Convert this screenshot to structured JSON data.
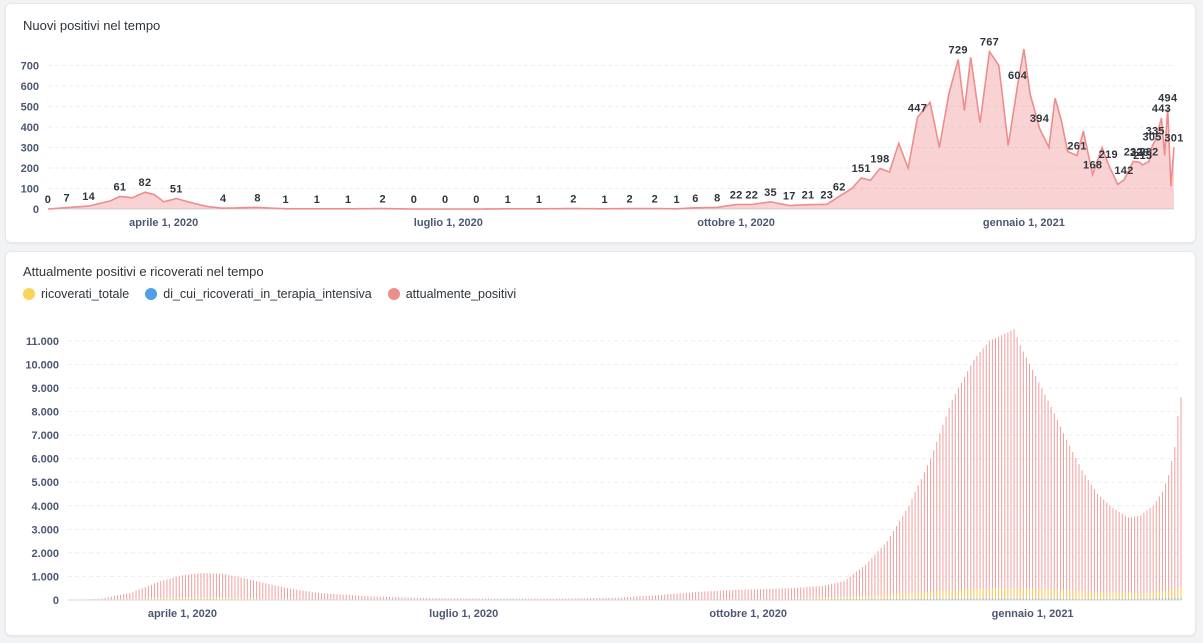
{
  "charts": {
    "top": {
      "title": "Nuovi positivi nel tempo"
    },
    "bottom": {
      "title": "Attualmente positivi e ricoverati nel tempo",
      "legend": [
        {
          "label": "ricoverati_totale",
          "color": "#f9d45c"
        },
        {
          "label": "di_cui_ricoverati_in_terapia_intensiva",
          "color": "#509ee3"
        },
        {
          "label": "attualmente_positivi",
          "color": "#ef8c8c"
        }
      ]
    }
  },
  "chart_data": [
    {
      "type": "area",
      "title": "Nuovi positivi nel tempo",
      "xlabel": "",
      "ylabel": "",
      "color": "#ef8c8c",
      "x_start": "2020-02-24",
      "x_end": "2021-02-18",
      "x_tick_labels": [
        "aprile 1, 2020",
        "luglio 1, 2020",
        "ottobre 1, 2020",
        "gennaio 1, 2021"
      ],
      "x_tick_dates": [
        "2020-04-01",
        "2020-07-01",
        "2020-10-01",
        "2021-01-01"
      ],
      "ylim": [
        0,
        780
      ],
      "y_ticks": [
        0,
        100,
        200,
        300,
        400,
        500,
        600,
        700
      ],
      "grid": true,
      "points": [
        [
          "2020-02-24",
          0
        ],
        [
          "2020-03-01",
          7
        ],
        [
          "2020-03-08",
          14
        ],
        [
          "2020-03-15",
          40
        ],
        [
          "2020-03-18",
          61
        ],
        [
          "2020-03-22",
          55
        ],
        [
          "2020-03-26",
          82
        ],
        [
          "2020-03-29",
          70
        ],
        [
          "2020-04-01",
          35
        ],
        [
          "2020-04-05",
          51
        ],
        [
          "2020-04-10",
          30
        ],
        [
          "2020-04-15",
          12
        ],
        [
          "2020-04-20",
          4
        ],
        [
          "2020-05-01",
          8
        ],
        [
          "2020-05-10",
          1
        ],
        [
          "2020-05-20",
          1
        ],
        [
          "2020-05-30",
          1
        ],
        [
          "2020-06-10",
          2
        ],
        [
          "2020-06-20",
          0
        ],
        [
          "2020-06-30",
          0
        ],
        [
          "2020-07-10",
          0
        ],
        [
          "2020-07-20",
          1
        ],
        [
          "2020-07-30",
          1
        ],
        [
          "2020-08-10",
          2
        ],
        [
          "2020-08-20",
          1
        ],
        [
          "2020-08-28",
          2
        ],
        [
          "2020-09-05",
          2
        ],
        [
          "2020-09-12",
          1
        ],
        [
          "2020-09-18",
          6
        ],
        [
          "2020-09-25",
          8
        ],
        [
          "2020-10-01",
          22
        ],
        [
          "2020-10-06",
          22
        ],
        [
          "2020-10-12",
          35
        ],
        [
          "2020-10-18",
          17
        ],
        [
          "2020-10-24",
          21
        ],
        [
          "2020-10-30",
          23
        ],
        [
          "2020-11-03",
          62
        ],
        [
          "2020-11-07",
          100
        ],
        [
          "2020-11-10",
          151
        ],
        [
          "2020-11-13",
          140
        ],
        [
          "2020-11-16",
          198
        ],
        [
          "2020-11-19",
          180
        ],
        [
          "2020-11-22",
          320
        ],
        [
          "2020-11-25",
          200
        ],
        [
          "2020-11-28",
          447
        ],
        [
          "2020-12-02",
          520
        ],
        [
          "2020-12-05",
          300
        ],
        [
          "2020-12-08",
          560
        ],
        [
          "2020-12-11",
          729
        ],
        [
          "2020-12-13",
          480
        ],
        [
          "2020-12-15",
          740
        ],
        [
          "2020-12-18",
          420
        ],
        [
          "2020-12-21",
          767
        ],
        [
          "2020-12-24",
          700
        ],
        [
          "2020-12-27",
          310
        ],
        [
          "2020-12-30",
          604
        ],
        [
          "2021-01-01",
          780
        ],
        [
          "2021-01-03",
          560
        ],
        [
          "2021-01-06",
          394
        ],
        [
          "2021-01-09",
          300
        ],
        [
          "2021-01-11",
          540
        ],
        [
          "2021-01-13",
          430
        ],
        [
          "2021-01-15",
          280
        ],
        [
          "2021-01-18",
          261
        ],
        [
          "2021-01-20",
          380
        ],
        [
          "2021-01-23",
          168
        ],
        [
          "2021-01-26",
          300
        ],
        [
          "2021-01-28",
          219
        ],
        [
          "2021-01-31",
          120
        ],
        [
          "2021-02-02",
          142
        ],
        [
          "2021-02-05",
          232
        ],
        [
          "2021-02-07",
          228
        ],
        [
          "2021-02-08",
          215
        ],
        [
          "2021-02-10",
          232
        ],
        [
          "2021-02-11",
          305
        ],
        [
          "2021-02-12",
          335
        ],
        [
          "2021-02-14",
          443
        ],
        [
          "2021-02-15",
          260
        ],
        [
          "2021-02-16",
          494
        ],
        [
          "2021-02-17",
          110
        ],
        [
          "2021-02-18",
          301
        ]
      ],
      "data_labels": [
        [
          "2020-02-24",
          0
        ],
        [
          "2020-03-01",
          7
        ],
        [
          "2020-03-08",
          14
        ],
        [
          "2020-03-18",
          61
        ],
        [
          "2020-03-26",
          82
        ],
        [
          "2020-04-05",
          51
        ],
        [
          "2020-04-20",
          4
        ],
        [
          "2020-05-01",
          8
        ],
        [
          "2020-05-10",
          1
        ],
        [
          "2020-05-20",
          1
        ],
        [
          "2020-05-30",
          1
        ],
        [
          "2020-06-10",
          2
        ],
        [
          "2020-06-20",
          0
        ],
        [
          "2020-06-30",
          0
        ],
        [
          "2020-07-10",
          0
        ],
        [
          "2020-07-20",
          1
        ],
        [
          "2020-07-30",
          1
        ],
        [
          "2020-08-10",
          2
        ],
        [
          "2020-08-20",
          1
        ],
        [
          "2020-08-28",
          2
        ],
        [
          "2020-09-05",
          2
        ],
        [
          "2020-09-12",
          1
        ],
        [
          "2020-09-18",
          6
        ],
        [
          "2020-09-25",
          8
        ],
        [
          "2020-10-01",
          22
        ],
        [
          "2020-10-06",
          22
        ],
        [
          "2020-10-12",
          35
        ],
        [
          "2020-10-18",
          17
        ],
        [
          "2020-10-24",
          21
        ],
        [
          "2020-10-30",
          23
        ],
        [
          "2020-11-03",
          62
        ],
        [
          "2020-11-10",
          151
        ],
        [
          "2020-11-16",
          198
        ],
        [
          "2020-11-28",
          447
        ],
        [
          "2020-12-11",
          729
        ],
        [
          "2020-12-21",
          767
        ],
        [
          "2020-12-30",
          604
        ],
        [
          "2021-01-06",
          394
        ],
        [
          "2021-01-18",
          261
        ],
        [
          "2021-01-23",
          168
        ],
        [
          "2021-01-28",
          219
        ],
        [
          "2021-02-02",
          142
        ],
        [
          "2021-02-05",
          232
        ],
        [
          "2021-02-07",
          228
        ],
        [
          "2021-02-08",
          215
        ],
        [
          "2021-02-10",
          232
        ],
        [
          "2021-02-11",
          305
        ],
        [
          "2021-02-12",
          335
        ],
        [
          "2021-02-14",
          443
        ],
        [
          "2021-02-16",
          494
        ],
        [
          "2021-02-18",
          301
        ]
      ]
    },
    {
      "type": "bar",
      "title": "Attualmente positivi e ricoverati nel tempo",
      "xlabel": "",
      "ylabel": "",
      "x_start": "2020-02-24",
      "x_end": "2021-02-18",
      "x_tick_labels": [
        "aprile 1, 2020",
        "luglio 1, 2020",
        "ottobre 1, 2020",
        "gennaio 1, 2021"
      ],
      "x_tick_dates": [
        "2020-04-01",
        "2020-07-01",
        "2020-10-01",
        "2021-01-01"
      ],
      "ylim": [
        0,
        11800
      ],
      "y_ticks": [
        0,
        1000,
        2000,
        3000,
        4000,
        5000,
        6000,
        7000,
        8000,
        9000,
        10000,
        11000
      ],
      "y_tick_labels": [
        "0",
        "1.000",
        "2.000",
        "3.000",
        "4.000",
        "5.000",
        "6.000",
        "7.000",
        "8.000",
        "9.000",
        "10.000",
        "11.000"
      ],
      "grid": true,
      "legend_position": "top-left",
      "series": [
        {
          "name": "attualmente_positivi",
          "color": "#ef8c8c",
          "points": [
            [
              "2020-02-24",
              0
            ],
            [
              "2020-03-05",
              50
            ],
            [
              "2020-03-15",
              300
            ],
            [
              "2020-03-25",
              800
            ],
            [
              "2020-04-01",
              1050
            ],
            [
              "2020-04-08",
              1150
            ],
            [
              "2020-04-15",
              1100
            ],
            [
              "2020-04-25",
              800
            ],
            [
              "2020-05-05",
              500
            ],
            [
              "2020-05-15",
              300
            ],
            [
              "2020-06-01",
              150
            ],
            [
              "2020-06-20",
              80
            ],
            [
              "2020-07-10",
              60
            ],
            [
              "2020-08-01",
              60
            ],
            [
              "2020-08-20",
              100
            ],
            [
              "2020-09-01",
              200
            ],
            [
              "2020-09-15",
              350
            ],
            [
              "2020-10-01",
              450
            ],
            [
              "2020-10-15",
              500
            ],
            [
              "2020-10-25",
              600
            ],
            [
              "2020-11-01",
              800
            ],
            [
              "2020-11-08",
              1500
            ],
            [
              "2020-11-15",
              2500
            ],
            [
              "2020-11-22",
              4000
            ],
            [
              "2020-11-29",
              6000
            ],
            [
              "2020-12-06",
              8500
            ],
            [
              "2020-12-13",
              10200
            ],
            [
              "2020-12-18",
              11000
            ],
            [
              "2020-12-23",
              11300
            ],
            [
              "2020-12-26",
              11500
            ],
            [
              "2020-12-28",
              10800
            ],
            [
              "2021-01-02",
              9500
            ],
            [
              "2021-01-07",
              8200
            ],
            [
              "2021-01-12",
              6800
            ],
            [
              "2021-01-17",
              5500
            ],
            [
              "2021-01-22",
              4500
            ],
            [
              "2021-01-27",
              3900
            ],
            [
              "2021-02-01",
              3500
            ],
            [
              "2021-02-05",
              3600
            ],
            [
              "2021-02-09",
              4000
            ],
            [
              "2021-02-12",
              4600
            ],
            [
              "2021-02-14",
              5300
            ],
            [
              "2021-02-16",
              6500
            ],
            [
              "2021-02-17",
              7800
            ],
            [
              "2021-02-18",
              8600
            ]
          ]
        },
        {
          "name": "ricoverati_totale",
          "color": "#f9d45c",
          "points": [
            [
              "2020-02-24",
              0
            ],
            [
              "2020-03-20",
              60
            ],
            [
              "2020-04-05",
              120
            ],
            [
              "2020-04-25",
              60
            ],
            [
              "2020-05-20",
              20
            ],
            [
              "2020-07-01",
              5
            ],
            [
              "2020-09-01",
              10
            ],
            [
              "2020-10-15",
              40
            ],
            [
              "2020-11-10",
              200
            ],
            [
              "2020-12-01",
              380
            ],
            [
              "2020-12-20",
              520
            ],
            [
              "2021-01-05",
              480
            ],
            [
              "2021-01-25",
              330
            ],
            [
              "2021-02-08",
              300
            ],
            [
              "2021-02-14",
              420
            ],
            [
              "2021-02-18",
              560
            ]
          ]
        },
        {
          "name": "di_cui_ricoverati_in_terapia_intensiva",
          "color": "#509ee3",
          "points": [
            [
              "2020-02-24",
              0
            ],
            [
              "2020-04-05",
              30
            ],
            [
              "2020-05-15",
              5
            ],
            [
              "2020-09-01",
              2
            ],
            [
              "2020-12-20",
              60
            ],
            [
              "2021-01-25",
              40
            ],
            [
              "2021-02-18",
              70
            ]
          ]
        }
      ]
    }
  ]
}
